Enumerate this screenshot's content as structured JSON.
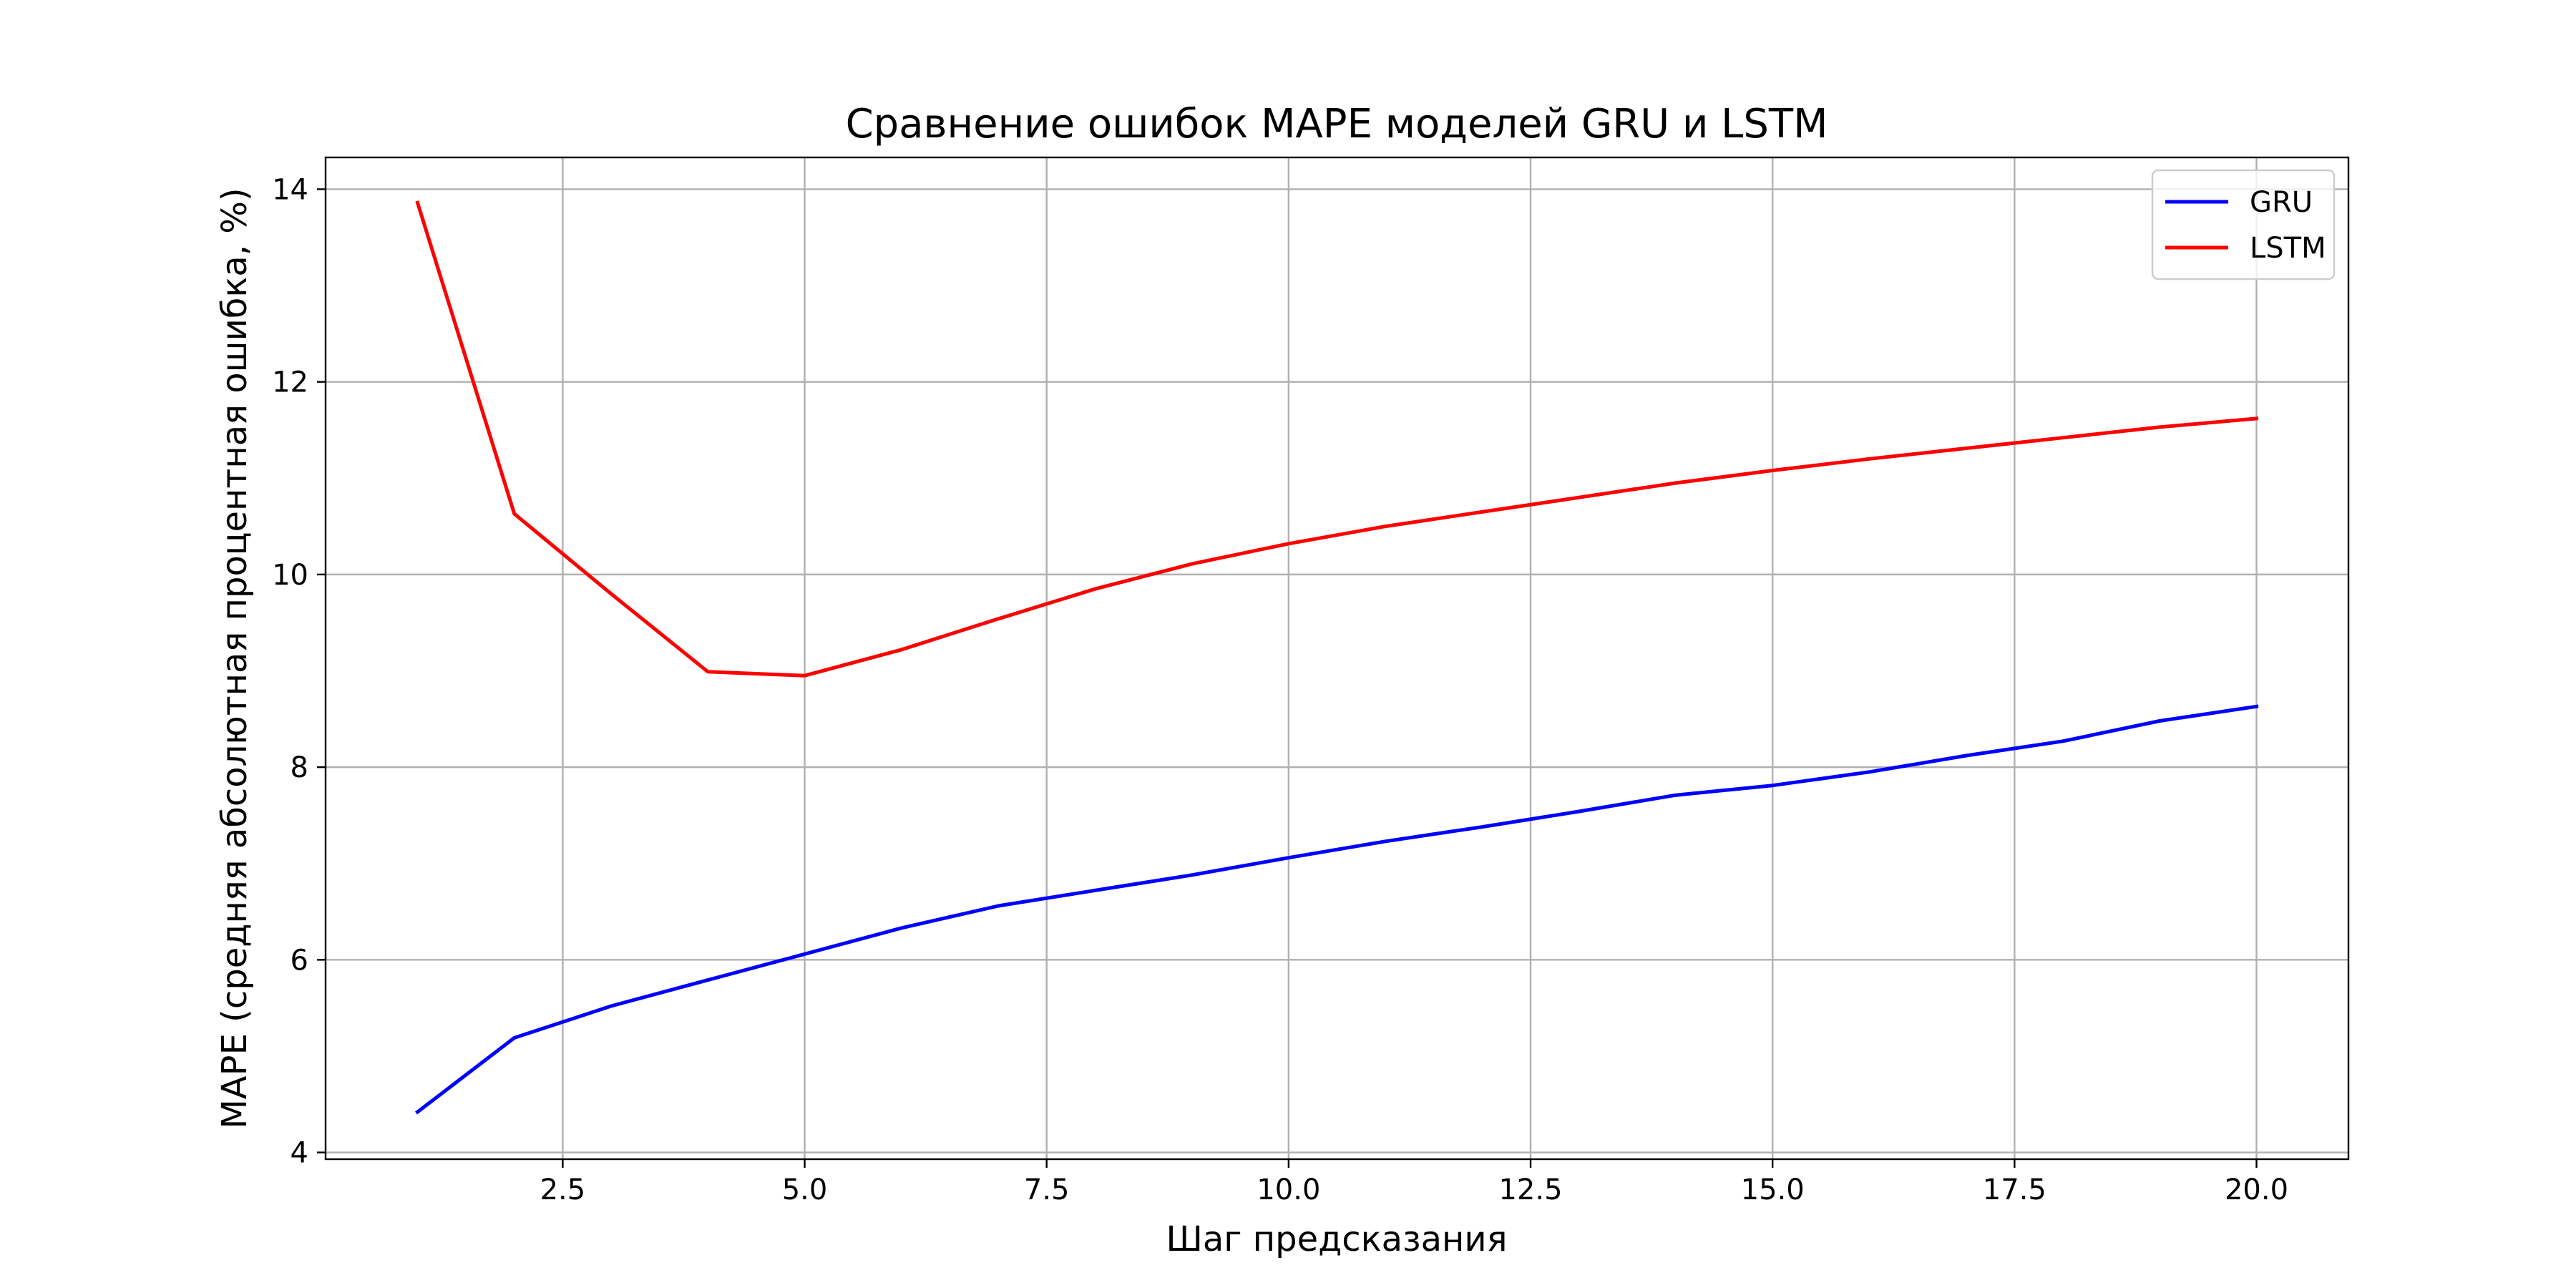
{
  "chart_data": {
    "type": "line",
    "title": "Сравнение ошибок MAPE моделей GRU и LSTM",
    "xlabel": "Шаг предсказания",
    "ylabel": "MAPE (средняя абсолютная процентная ошибка, %)",
    "x": [
      1,
      2,
      3,
      4,
      5,
      6,
      7,
      8,
      9,
      10,
      11,
      12,
      13,
      14,
      15,
      16,
      17,
      18,
      19,
      20
    ],
    "xlim": [
      0.05,
      20.95
    ],
    "ylim": [
      3.93,
      14.33
    ],
    "xticks": [
      2.5,
      5.0,
      7.5,
      10.0,
      12.5,
      15.0,
      17.5,
      20.0
    ],
    "xtick_labels": [
      "2.5",
      "5.0",
      "7.5",
      "10.0",
      "12.5",
      "15.0",
      "17.5",
      "20.0"
    ],
    "yticks": [
      4,
      6,
      8,
      10,
      12,
      14
    ],
    "ytick_labels": [
      "4",
      "6",
      "8",
      "10",
      "12",
      "14"
    ],
    "grid": true,
    "legend_position": "top-right",
    "series": [
      {
        "name": "GRU",
        "color": "#0000ff",
        "values": [
          4.42,
          5.19,
          5.52,
          5.79,
          6.06,
          6.33,
          6.56,
          6.72,
          6.88,
          7.06,
          7.23,
          7.38,
          7.54,
          7.71,
          7.81,
          7.95,
          8.12,
          8.27,
          8.48,
          8.63
        ]
      },
      {
        "name": "LSTM",
        "color": "#ff0000",
        "values": [
          13.86,
          10.63,
          9.8,
          8.99,
          8.95,
          9.22,
          9.54,
          9.85,
          10.11,
          10.32,
          10.5,
          10.65,
          10.8,
          10.95,
          11.08,
          11.2,
          11.31,
          11.42,
          11.53,
          11.62
        ]
      }
    ]
  }
}
